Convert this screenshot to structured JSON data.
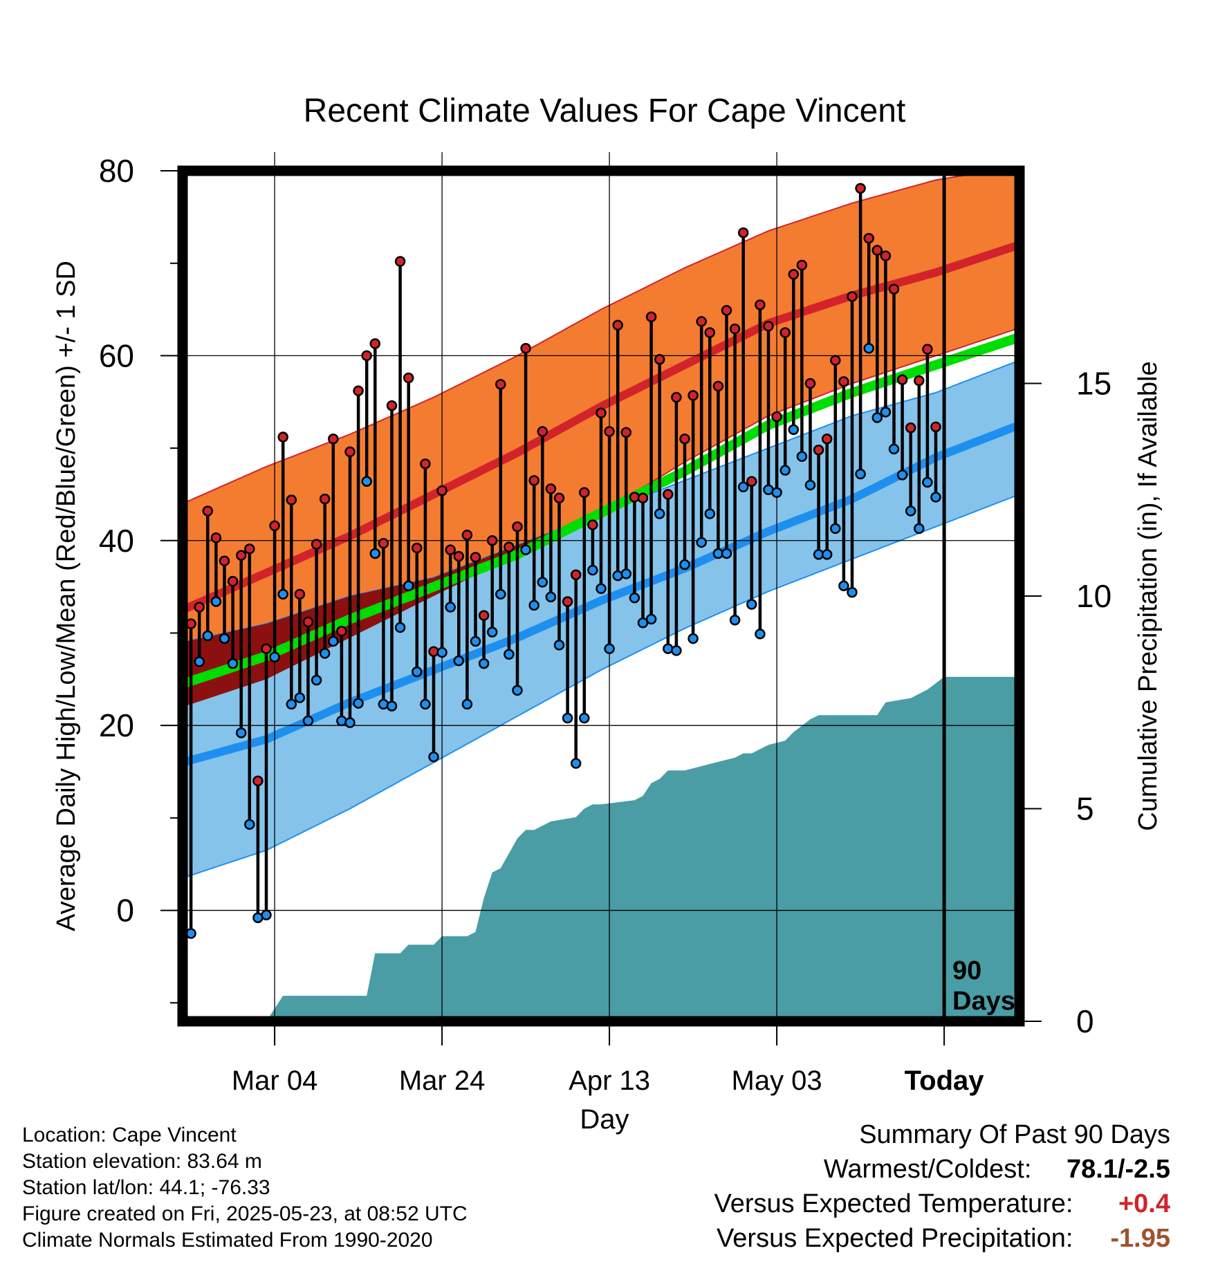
{
  "chart_data": {
    "type": "line",
    "title": "Recent Climate Values For Cape Vincent",
    "xlabel": "Day",
    "ylabel_left": "Average Daily High/Low/Mean (Red/Blue/Green) +/- 1 SD",
    "ylabel_right": "Cumulative Precipitation (in), If Available",
    "x_tick_labels": [
      "Mar 04",
      "Mar 24",
      "Apr 13",
      "May 03",
      "Today"
    ],
    "x_tick_days": [
      11,
      31,
      51,
      71,
      91
    ],
    "xlim": [
      0,
      100
    ],
    "ylim_left": [
      -12,
      80
    ],
    "y_ticks_left": [
      0,
      20,
      40,
      60,
      80
    ],
    "ylim_right": [
      0,
      20
    ],
    "y_ticks_right": [
      0,
      5,
      10,
      15
    ],
    "today_marker": {
      "day": 91,
      "label_line1": "90",
      "label_line2": "Days"
    },
    "normals": {
      "days": [
        0,
        10,
        20,
        30,
        40,
        50,
        60,
        70,
        80,
        90,
        100
      ],
      "high_mean": [
        32.5,
        36.5,
        40.5,
        45,
        49.5,
        54.5,
        59,
        63.5,
        66.5,
        69,
        72
      ],
      "high_upper": [
        44,
        48,
        51.5,
        55.5,
        60,
        65,
        69.5,
        73.5,
        76.5,
        79,
        80.5
      ],
      "high_lower": [
        22,
        25,
        29.5,
        34,
        38.5,
        43,
        48.5,
        53.5,
        57,
        60,
        63
      ],
      "mean_mean": [
        24.5,
        27.5,
        31.5,
        35,
        38.5,
        43,
        47.5,
        52.5,
        56,
        59,
        62
      ],
      "low_mean": [
        16,
        18.5,
        22.5,
        26,
        29.5,
        33.5,
        37,
        41,
        44.5,
        49,
        52.5
      ],
      "low_upper": [
        29,
        31,
        34,
        36,
        39.5,
        43,
        46.5,
        50,
        53.5,
        56,
        59.5
      ],
      "low_lower": [
        3.5,
        6.5,
        11,
        16,
        21,
        26,
        30.5,
        34.5,
        38,
        41.5,
        45
      ]
    },
    "series": [
      {
        "name": "High",
        "values": [
          31,
          32.8,
          43.2,
          40.3,
          37.8,
          35.6,
          38.4,
          39.1,
          14,
          28.3,
          41.6,
          51.2,
          44.4,
          34.2,
          31.2,
          39.6,
          44.5,
          51,
          30.2,
          49.6,
          56.2,
          60,
          61.3,
          39.7,
          54.6,
          70.2,
          57.6,
          39.2,
          48.3,
          28,
          45.4,
          39,
          38.3,
          40.6,
          38.2,
          31.9,
          40,
          56.9,
          39.3,
          41.5,
          60.8,
          46.5,
          51.8,
          45.6,
          44.6,
          33.4,
          36.3,
          45.2,
          41.7,
          53.8,
          51.8,
          63.3,
          51.7,
          44.7,
          44.6,
          64.2,
          59.6,
          45,
          55.5,
          51,
          55.7,
          63.7,
          62.5,
          56.7,
          64.9,
          62.9,
          73.3,
          46.4,
          65.5,
          63.2,
          53.4,
          62.5,
          68.8,
          69.8,
          57,
          49.8,
          51,
          59.5,
          57.2,
          66.4,
          78.1,
          72.7,
          71.4,
          70.8,
          67.2,
          57.4,
          52.2,
          57.3,
          60.7,
          52.3
        ]
      },
      {
        "name": "Low",
        "values": [
          -2.5,
          26.9,
          29.7,
          33.4,
          29.4,
          26.7,
          19.2,
          9.3,
          -0.8,
          -0.5,
          27.4,
          34.2,
          22.3,
          23,
          20.5,
          24.9,
          27.8,
          29.1,
          20.5,
          20.3,
          22.4,
          46.4,
          38.6,
          22.3,
          22.1,
          30.6,
          35.1,
          25.8,
          22.3,
          16.6,
          27.9,
          32.8,
          27,
          22.3,
          29.1,
          26.7,
          30.1,
          34.2,
          27.7,
          23.8,
          39,
          33,
          35.5,
          33.9,
          28.7,
          20.8,
          15.9,
          20.8,
          36.8,
          34.8,
          28.3,
          36.2,
          36.4,
          33.8,
          31.1,
          31.5,
          42.9,
          28.3,
          28.1,
          37.4,
          29.4,
          39.8,
          42.9,
          38.6,
          38.6,
          31.4,
          45.8,
          33.1,
          29.9,
          45.5,
          45.2,
          47.6,
          52,
          49.1,
          46,
          38.5,
          38.5,
          41.3,
          35.1,
          34.4,
          47.2,
          60.8,
          53.3,
          53.9,
          49.9,
          47.1,
          43.2,
          41.3,
          46.3,
          44.7
        ]
      }
    ],
    "precip_cumulative": {
      "days": [
        0,
        10,
        11,
        12,
        22,
        23,
        26,
        27,
        30,
        31,
        34,
        35,
        36,
        37,
        38,
        40,
        41,
        42,
        44,
        47,
        48,
        49,
        50,
        54,
        55,
        56,
        57,
        58,
        60,
        62,
        64,
        66,
        67,
        68,
        69,
        70,
        72,
        73,
        75,
        76,
        83,
        84,
        87,
        88,
        89,
        91,
        100
      ],
      "values": [
        0,
        0,
        0.3,
        0.6,
        0.6,
        1.6,
        1.6,
        1.8,
        1.8,
        2,
        2,
        2.1,
        2.9,
        3.5,
        3.6,
        4.3,
        4.5,
        4.5,
        4.7,
        4.8,
        5,
        5.1,
        5.1,
        5.2,
        5.3,
        5.6,
        5.7,
        5.9,
        5.9,
        6,
        6.1,
        6.2,
        6.3,
        6.3,
        6.4,
        6.5,
        6.6,
        6.8,
        7.1,
        7.2,
        7.2,
        7.5,
        7.6,
        7.7,
        7.8,
        8.1,
        8.1
      ]
    },
    "colors": {
      "high_band": "#f47c30",
      "high_line": "#d2232a",
      "overlap_band": "#8c1010",
      "mean_line": "#00dd00",
      "low_band": "#85c3ea",
      "low_line": "#1e8fef",
      "precip_fill": "#4a9da5",
      "high_dot": "#d2232a",
      "low_dot": "#1e8fef"
    }
  },
  "location_info": {
    "location": "Location: Cape Vincent",
    "elevation": "Station elevation: 83.64 m",
    "latlon": "Station lat/lon: 44.1; -76.33",
    "created": "Figure created on Fri, 2025-05-23, at 08:52 UTC",
    "normals_period": "Climate Normals Estimated From 1990-2020"
  },
  "summary": {
    "heading": "Summary Of Past 90 Days",
    "warmest_coldest_label": "Warmest/Coldest:",
    "warmest_coldest_value": "78.1/-2.5",
    "temp_label": "Versus Expected Temperature:",
    "temp_value": "+0.4",
    "temp_color": "#d2232a",
    "precip_label": "Versus Expected Precipitation:",
    "precip_value": "-1.95",
    "precip_color": "#a0522d"
  }
}
